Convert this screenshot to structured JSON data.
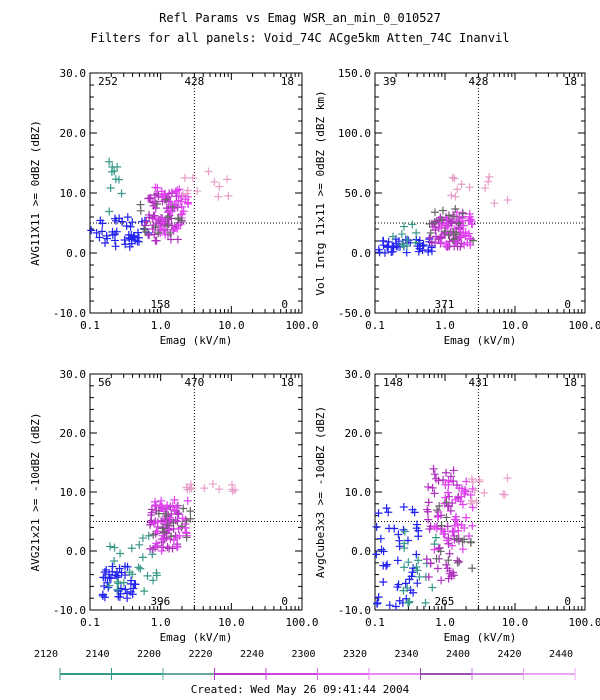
{
  "header": {
    "title_line1": "Refl Params vs Emag   WSR_an_min_0_010527",
    "title_line2": "Filters for all panels:  Void_74C ACge5km Atten_74C Inanvil"
  },
  "footer": {
    "created": "Created: Wed May 26 09:41:44 2004"
  },
  "colorbar": {
    "tick_labels": [
      "2120",
      "2140",
      "2200",
      "2220",
      "2240",
      "2300",
      "2320",
      "2340",
      "2400",
      "2420",
      "2440"
    ],
    "segment_colors": [
      "#3a9a8a",
      "#2e9a8a",
      "#6aa89e",
      "#b838c8",
      "#cc44dd",
      "#dd66ee",
      "#e888f0",
      "#9a4fb0",
      "#c878d8",
      "#e8a8f0"
    ]
  },
  "colors": {
    "blue": "#2222ee",
    "teal": "#3a9a8a",
    "purple": "#b030c0",
    "magenta": "#e040f0",
    "gray": "#666666",
    "pink": "#e8a0c8",
    "lightgray": "#a0a0a0"
  },
  "chart_data": [
    {
      "type": "scatter",
      "id": "p1",
      "xlabel": "Emag (kV/m)",
      "ylabel": "AVG11X11 >= 0dBZ (dBZ)",
      "xscale": "log",
      "xlim": [
        0.1,
        100.0
      ],
      "ylim": [
        -10.0,
        30.0
      ],
      "xticks": [
        "0.1",
        "1.0",
        "10.0",
        "100.0"
      ],
      "yticks": [
        "-10.0",
        "0.0",
        "10.0",
        "20.0",
        "30.0"
      ],
      "ref_x": 3.0,
      "ref_y": 5.0,
      "quadrant_counts": {
        "top_left": "252",
        "top_middle": "428",
        "top_right": "18",
        "bottom_middle": "158",
        "bottom_right": "0"
      },
      "clusters": [
        {
          "color": "blue",
          "n": 45,
          "x": [
            0.1,
            0.7
          ],
          "y": [
            1.0,
            6.0
          ]
        },
        {
          "color": "teal",
          "n": 10,
          "x": [
            0.18,
            0.28
          ],
          "y": [
            4.0,
            16.0
          ]
        },
        {
          "color": "purple",
          "n": 60,
          "x": [
            0.6,
            1.8
          ],
          "y": [
            2.0,
            10.0
          ]
        },
        {
          "color": "magenta",
          "n": 50,
          "x": [
            0.8,
            2.5
          ],
          "y": [
            3.0,
            11.0
          ]
        },
        {
          "color": "gray",
          "n": 15,
          "x": [
            0.5,
            2.0
          ],
          "y": [
            3.0,
            9.0
          ]
        },
        {
          "color": "pink",
          "n": 12,
          "x": [
            2.0,
            12.0
          ],
          "y": [
            9.0,
            14.0
          ]
        }
      ]
    },
    {
      "type": "scatter",
      "id": "p2",
      "xlabel": "Emag (kV/m)",
      "ylabel": "Vol Intg 11x11 >= 0dBZ (dBZ km)",
      "xscale": "log",
      "xlim": [
        0.1,
        100.0
      ],
      "ylim": [
        -50.0,
        150.0
      ],
      "xticks": [
        "0.1",
        "1.0",
        "10.0",
        "100.0"
      ],
      "yticks": [
        "-50.0",
        "0.0",
        "50.0",
        "100.0",
        "150.0"
      ],
      "ref_x": 3.0,
      "ref_y": 25.0,
      "quadrant_counts": {
        "top_left": "39",
        "top_middle": "428",
        "top_right": "18",
        "bottom_middle": "371",
        "bottom_right": "0"
      },
      "clusters": [
        {
          "color": "blue",
          "n": 45,
          "x": [
            0.1,
            0.7
          ],
          "y": [
            0.0,
            12.0
          ]
        },
        {
          "color": "teal",
          "n": 10,
          "x": [
            0.18,
            0.4
          ],
          "y": [
            5.0,
            28.0
          ]
        },
        {
          "color": "purple",
          "n": 55,
          "x": [
            0.6,
            1.8
          ],
          "y": [
            5.0,
            30.0
          ]
        },
        {
          "color": "magenta",
          "n": 45,
          "x": [
            0.8,
            2.5
          ],
          "y": [
            5.0,
            35.0
          ]
        },
        {
          "color": "gray",
          "n": 18,
          "x": [
            0.6,
            3.0
          ],
          "y": [
            10.0,
            40.0
          ]
        },
        {
          "color": "pink",
          "n": 12,
          "x": [
            1.2,
            10.0
          ],
          "y": [
            40.0,
            65.0
          ]
        }
      ]
    },
    {
      "type": "scatter",
      "id": "p3",
      "xlabel": "Emag (kV/m)",
      "ylabel": "AVG21x21 >= -10dBZ (dBZ)",
      "xscale": "log",
      "xlim": [
        0.1,
        100.0
      ],
      "ylim": [
        -10.0,
        30.0
      ],
      "xticks": [
        "0.1",
        "1.0",
        "10.0",
        "100.0"
      ],
      "yticks": [
        "-10.0",
        "0.0",
        "10.0",
        "20.0",
        "30.0"
      ],
      "ref_x": 3.0,
      "ref_y": 5.0,
      "quadrant_counts": {
        "top_left": "56",
        "top_middle": "470",
        "top_right": "18",
        "bottom_middle": "396",
        "bottom_right": "0"
      },
      "clusters": [
        {
          "color": "blue",
          "n": 40,
          "x": [
            0.15,
            0.45
          ],
          "y": [
            -8.0,
            -2.0
          ]
        },
        {
          "color": "teal",
          "n": 25,
          "x": [
            0.18,
            1.0
          ],
          "y": [
            -7.0,
            3.0
          ]
        },
        {
          "color": "purple",
          "n": 55,
          "x": [
            0.7,
            1.8
          ],
          "y": [
            0.0,
            8.0
          ]
        },
        {
          "color": "magenta",
          "n": 45,
          "x": [
            0.8,
            2.5
          ],
          "y": [
            0.0,
            9.0
          ]
        },
        {
          "color": "gray",
          "n": 15,
          "x": [
            0.6,
            2.8
          ],
          "y": [
            2.0,
            8.0
          ]
        },
        {
          "color": "pink",
          "n": 12,
          "x": [
            2.0,
            12.0
          ],
          "y": [
            10.0,
            11.5
          ]
        }
      ]
    },
    {
      "type": "scatter",
      "id": "p4",
      "xlabel": "Emag (kV/m)",
      "ylabel": "AvgCube3x3 >= -10dBZ (dBZ)",
      "xscale": "log",
      "xlim": [
        0.1,
        100.0
      ],
      "ylim": [
        -10.0,
        30.0
      ],
      "xticks": [
        "0.1",
        "1.0",
        "10.0",
        "100.0"
      ],
      "yticks": [
        "-10.0",
        "0.0",
        "10.0",
        "20.0",
        "30.0"
      ],
      "ref_x": 3.0,
      "ref_y": 5.0,
      "quadrant_counts": {
        "top_left": "148",
        "top_middle": "431",
        "top_right": "18",
        "bottom_middle": "265",
        "bottom_right": "0"
      },
      "clusters": [
        {
          "color": "blue",
          "n": 50,
          "x": [
            0.1,
            0.45
          ],
          "y": [
            -10.0,
            8.0
          ]
        },
        {
          "color": "teal",
          "n": 20,
          "x": [
            0.25,
            0.8
          ],
          "y": [
            -9.0,
            4.0
          ]
        },
        {
          "color": "purple",
          "n": 60,
          "x": [
            0.5,
            1.6
          ],
          "y": [
            -5.0,
            14.0
          ]
        },
        {
          "color": "magenta",
          "n": 45,
          "x": [
            0.7,
            2.5
          ],
          "y": [
            0.0,
            13.0
          ]
        },
        {
          "color": "gray",
          "n": 15,
          "x": [
            0.6,
            2.5
          ],
          "y": [
            -3.0,
            10.0
          ]
        },
        {
          "color": "pink",
          "n": 12,
          "x": [
            2.0,
            8.0
          ],
          "y": [
            8.0,
            13.0
          ]
        }
      ]
    }
  ]
}
